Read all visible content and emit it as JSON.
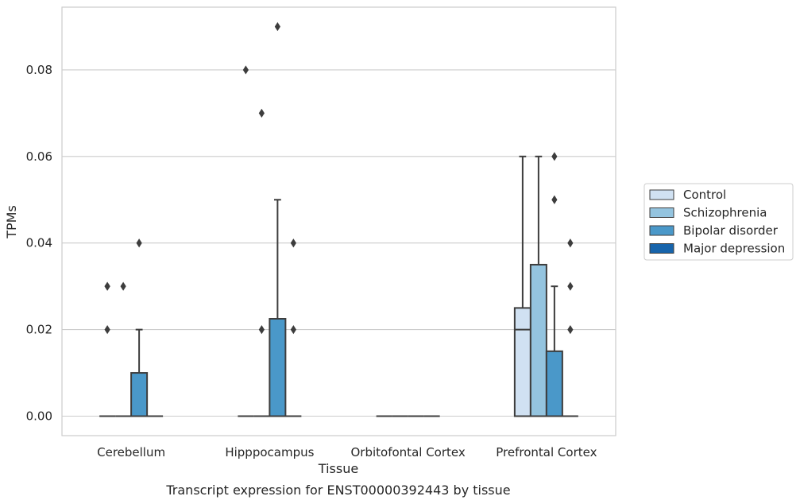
{
  "chart_data": {
    "type": "box",
    "xlabel": "Tissue",
    "ylabel": "TPMs",
    "caption": "Transcript expression for ENST00000392443 by tissue",
    "ylim": [
      -0.0045,
      0.0945
    ],
    "yticks": [
      0.0,
      0.02,
      0.04,
      0.06,
      0.08
    ],
    "ytick_labels": [
      "0.00",
      "0.02",
      "0.04",
      "0.06",
      "0.08"
    ],
    "grid": "horizontal",
    "legend_position": "right",
    "categories": [
      "Cerebellum",
      "Hipppocampus",
      "Orbitofontal Cortex",
      "Prefrontal Cortex"
    ],
    "series": [
      {
        "name": "Control",
        "color": "#d0e1f2",
        "boxes": [
          {
            "q1": 0,
            "median": 0,
            "q3": 0,
            "whisker_low": 0,
            "whisker_high": 0,
            "outliers": [
              0.02,
              0.03,
              0.03
            ]
          },
          {
            "q1": 0,
            "median": 0,
            "q3": 0,
            "whisker_low": 0,
            "whisker_high": 0,
            "outliers": [
              0.08
            ]
          },
          {
            "q1": 0,
            "median": 0,
            "q3": 0,
            "whisker_low": 0,
            "whisker_high": 0,
            "outliers": []
          },
          {
            "q1": 0,
            "median": 0.02,
            "q3": 0.025,
            "whisker_low": 0,
            "whisker_high": 0.06,
            "outliers": []
          }
        ]
      },
      {
        "name": "Schizophrenia",
        "color": "#94c4df",
        "boxes": [
          {
            "q1": 0,
            "median": 0,
            "q3": 0,
            "whisker_low": 0,
            "whisker_high": 0,
            "outliers": [
              0.03
            ]
          },
          {
            "q1": 0,
            "median": 0,
            "q3": 0,
            "whisker_low": 0,
            "whisker_high": 0,
            "outliers": [
              0.02,
              0.07
            ]
          },
          {
            "q1": 0,
            "median": 0,
            "q3": 0,
            "whisker_low": 0,
            "whisker_high": 0,
            "outliers": []
          },
          {
            "q1": 0,
            "median": 0,
            "q3": 0.035,
            "whisker_low": 0,
            "whisker_high": 0.06,
            "outliers": []
          }
        ]
      },
      {
        "name": "Bipolar disorder",
        "color": "#4a98c9",
        "boxes": [
          {
            "q1": 0,
            "median": 0,
            "q3": 0.01,
            "whisker_low": 0,
            "whisker_high": 0.02,
            "outliers": [
              0.04
            ]
          },
          {
            "q1": 0,
            "median": 0,
            "q3": 0.0225,
            "whisker_low": 0,
            "whisker_high": 0.05,
            "outliers": [
              0.09
            ]
          },
          {
            "q1": 0,
            "median": 0,
            "q3": 0,
            "whisker_low": 0,
            "whisker_high": 0,
            "outliers": []
          },
          {
            "q1": 0,
            "median": 0,
            "q3": 0.015,
            "whisker_low": 0,
            "whisker_high": 0.03,
            "outliers": [
              0.06,
              0.05
            ]
          }
        ]
      },
      {
        "name": "Major depression",
        "color": "#1764ab",
        "boxes": [
          {
            "q1": 0,
            "median": 0,
            "q3": 0,
            "whisker_low": 0,
            "whisker_high": 0,
            "outliers": []
          },
          {
            "q1": 0,
            "median": 0,
            "q3": 0,
            "whisker_low": 0,
            "whisker_high": 0,
            "outliers": [
              0.02,
              0.04
            ]
          },
          {
            "q1": 0,
            "median": 0,
            "q3": 0,
            "whisker_low": 0,
            "whisker_high": 0,
            "outliers": []
          },
          {
            "q1": 0,
            "median": 0,
            "q3": 0,
            "whisker_low": 0,
            "whisker_high": 0,
            "outliers": [
              0.02,
              0.03,
              0.04
            ]
          }
        ]
      }
    ]
  },
  "colors": {
    "grid": "#cccccc",
    "frame": "#cccccc",
    "box_edge": "#3d3d3d",
    "background": "#ffffff"
  }
}
